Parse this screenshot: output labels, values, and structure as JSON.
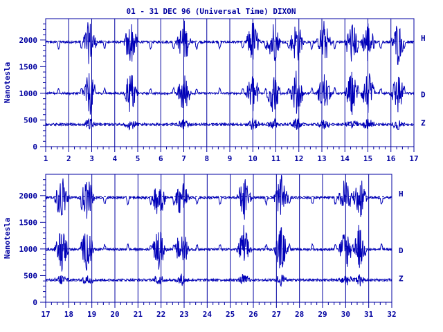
{
  "title": "01 - 31 DEC 96 (Universal Time) DIXON",
  "colors": {
    "ink": "#0000a0",
    "trace": "#0000b8",
    "background": "#ffffff"
  },
  "chart_data": [
    {
      "type": "line",
      "panel": "top",
      "ylabel": "Nanotesla",
      "ylim": [
        0,
        2400
      ],
      "y_ticks": [
        "0",
        "500",
        "1000",
        "1500",
        "2000"
      ],
      "xlim": [
        1,
        17
      ],
      "x_ticks": [
        "1",
        "2",
        "3",
        "4",
        "5",
        "6",
        "7",
        "8",
        "9",
        "10",
        "11",
        "12",
        "13",
        "14",
        "15",
        "16",
        "17"
      ],
      "grid": "vertical lines at each day",
      "legend": "right",
      "series": [
        {
          "name": "H",
          "baseline": 1960,
          "dashed_reference": 1980
        },
        {
          "name": "D",
          "baseline": 1000,
          "dashed_reference": 1000
        },
        {
          "name": "Z",
          "baseline": 420,
          "dashed_reference": 400
        }
      ],
      "disturbed_days": [
        2.9,
        4.7,
        7.0,
        10.0,
        10.9,
        11.9,
        13.1,
        14.3,
        15.0,
        16.3
      ]
    },
    {
      "type": "line",
      "panel": "bottom",
      "ylabel": "Nanotesla",
      "ylim": [
        0,
        2400
      ],
      "y_ticks": [
        "0",
        "500",
        "1000",
        "1500",
        "2000"
      ],
      "xlim": [
        17,
        32
      ],
      "x_ticks": [
        "17",
        "18",
        "19",
        "20",
        "21",
        "22",
        "23",
        "24",
        "25",
        "26",
        "27",
        "28",
        "29",
        "30",
        "31",
        "32"
      ],
      "grid": "vertical lines at each day",
      "legend": "right",
      "series": [
        {
          "name": "H",
          "baseline": 1960,
          "dashed_reference": 1980
        },
        {
          "name": "D",
          "baseline": 990,
          "dashed_reference": 1000
        },
        {
          "name": "Z",
          "baseline": 420,
          "dashed_reference": 400
        }
      ],
      "disturbed_days": [
        17.7,
        18.8,
        21.9,
        22.9,
        25.6,
        27.2,
        30.0,
        30.6
      ]
    }
  ]
}
